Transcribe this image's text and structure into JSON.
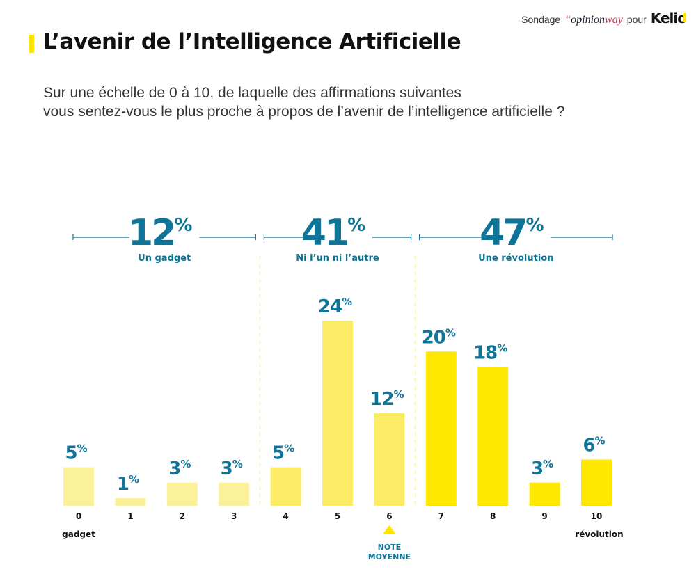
{
  "header": {
    "brand_prefix": "Sondage",
    "brand_quote": "“",
    "brand_opinion": "opinion",
    "brand_way": "way",
    "brand_middle": "pour",
    "brand_client_main": "Keli",
    "brand_client_last": "o"
  },
  "title": "L’avenir de l’Intelligence Artificielle",
  "subtitle_line1": "Sur une échelle de 0 à 10, de laquelle des affirmations suivantes",
  "subtitle_line2": "vous sentez-vous le plus proche à propos de l’avenir de l’intelligence artificielle ?",
  "colors": {
    "accent_blue": "#0f7598",
    "bar_light": "#fcf19b",
    "bar_mid": "#fdec66",
    "bar_strong": "#ffe800",
    "title_marker": "#ffe500"
  },
  "chart_data": {
    "type": "bar",
    "title": "L’avenir de l’Intelligence Artificielle",
    "xlabel": "",
    "ylabel": "",
    "categories": [
      "0",
      "1",
      "2",
      "3",
      "4",
      "5",
      "6",
      "7",
      "8",
      "9",
      "10"
    ],
    "values": [
      5,
      1,
      3,
      3,
      5,
      24,
      12,
      20,
      18,
      3,
      6
    ],
    "value_labels": [
      "5",
      "1",
      "3",
      "3",
      "5",
      "24",
      "12",
      "20",
      "18",
      "3",
      "6"
    ],
    "value_suffix": "%",
    "ylim": [
      0,
      24
    ],
    "grid": false,
    "groups": [
      {
        "name": "Un gadget",
        "total": "12",
        "suffix": "%",
        "categories": [
          "0",
          "1",
          "2",
          "3"
        ],
        "shade": "light"
      },
      {
        "name": "Ni l’un ni l’autre",
        "total": "41",
        "suffix": "%",
        "categories": [
          "4",
          "5",
          "6"
        ],
        "shade": "mid"
      },
      {
        "name": "Une révolution",
        "total": "47",
        "suffix": "%",
        "categories": [
          "7",
          "8",
          "9",
          "10"
        ],
        "shade": "strong"
      }
    ],
    "axis_end_labels": {
      "left": "gadget",
      "right": "révolution"
    },
    "mean_marker": {
      "category": "6",
      "label_line1": "NOTE",
      "label_line2": "MOYENNE"
    }
  }
}
